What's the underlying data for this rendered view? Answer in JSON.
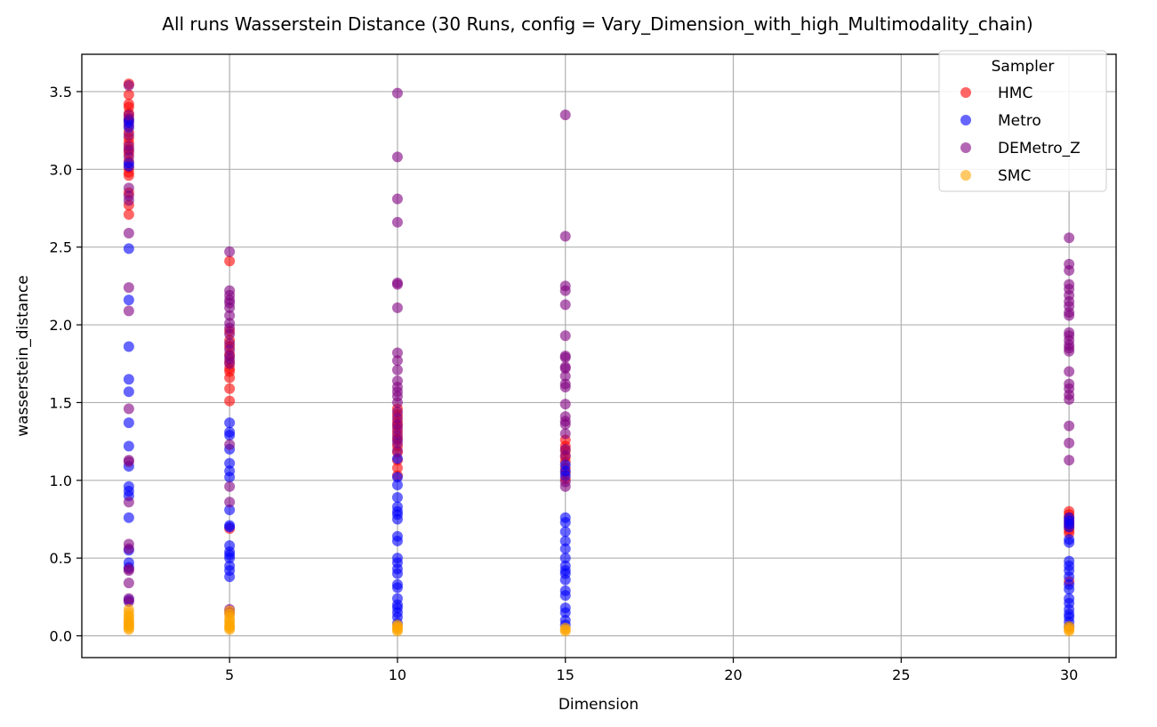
{
  "chart_data": {
    "type": "scatter",
    "title": "All runs Wasserstein Distance (30 Runs, config = Vary_Dimension_with_high_Multimodality_chain)",
    "xlabel": "Dimension",
    "ylabel": "wasserstein_distance",
    "xlim": [
      0.6,
      31.4
    ],
    "ylim": [
      -0.14,
      3.74
    ],
    "xticks": [
      5,
      10,
      15,
      20,
      25,
      30
    ],
    "yticks": [
      0.0,
      0.5,
      1.0,
      1.5,
      2.0,
      2.5,
      3.0,
      3.5
    ],
    "xtick_labels": [
      "5",
      "10",
      "15",
      "20",
      "25",
      "30"
    ],
    "ytick_labels": [
      "0.0",
      "0.5",
      "1.0",
      "1.5",
      "2.0",
      "2.5",
      "3.0",
      "3.5"
    ],
    "grid": true,
    "legend": {
      "title": "Sampler",
      "placement": "top-right"
    },
    "series": [
      {
        "name": "HMC",
        "color": "#ff0000",
        "points": [
          [
            2,
            3.55
          ],
          [
            2,
            3.48
          ],
          [
            2,
            3.42
          ],
          [
            2,
            3.4
          ],
          [
            2,
            3.36
          ],
          [
            2,
            3.33
          ],
          [
            2,
            3.31
          ],
          [
            2,
            3.28
          ],
          [
            2,
            3.24
          ],
          [
            2,
            3.2
          ],
          [
            2,
            3.17
          ],
          [
            2,
            3.13
          ],
          [
            2,
            3.1
          ],
          [
            2,
            3.05
          ],
          [
            2,
            3.01
          ],
          [
            2,
            2.98
          ],
          [
            2,
            2.96
          ],
          [
            2,
            2.85
          ],
          [
            2,
            2.77
          ],
          [
            2,
            2.71
          ],
          [
            5,
            2.41
          ],
          [
            5,
            1.96
          ],
          [
            5,
            1.9
          ],
          [
            5,
            1.86
          ],
          [
            5,
            1.81
          ],
          [
            5,
            1.76
          ],
          [
            5,
            1.72
          ],
          [
            5,
            1.7
          ],
          [
            5,
            1.66
          ],
          [
            5,
            1.59
          ],
          [
            5,
            1.51
          ],
          [
            5,
            0.69
          ],
          [
            10,
            1.46
          ],
          [
            10,
            1.42
          ],
          [
            10,
            1.38
          ],
          [
            10,
            1.35
          ],
          [
            10,
            1.31
          ],
          [
            10,
            1.27
          ],
          [
            10,
            1.22
          ],
          [
            10,
            1.18
          ],
          [
            10,
            1.13
          ],
          [
            10,
            1.08
          ],
          [
            10,
            1.03
          ],
          [
            15,
            1.26
          ],
          [
            15,
            1.22
          ],
          [
            15,
            1.19
          ],
          [
            15,
            1.15
          ],
          [
            15,
            1.12
          ],
          [
            15,
            1.08
          ],
          [
            15,
            1.05
          ],
          [
            15,
            1.01
          ],
          [
            30,
            0.8
          ],
          [
            30,
            0.78
          ],
          [
            30,
            0.76
          ],
          [
            30,
            0.74
          ],
          [
            30,
            0.72
          ],
          [
            30,
            0.7
          ],
          [
            30,
            0.68
          ],
          [
            30,
            0.66
          ],
          [
            30,
            0.35
          ]
        ]
      },
      {
        "name": "Metro",
        "color": "#0000ff",
        "points": [
          [
            2,
            3.32
          ],
          [
            2,
            3.3
          ],
          [
            2,
            3.27
          ],
          [
            2,
            3.04
          ],
          [
            2,
            3.02
          ],
          [
            2,
            2.49
          ],
          [
            2,
            2.16
          ],
          [
            2,
            1.86
          ],
          [
            2,
            1.65
          ],
          [
            2,
            1.57
          ],
          [
            2,
            1.37
          ],
          [
            2,
            1.22
          ],
          [
            2,
            1.09
          ],
          [
            2,
            0.96
          ],
          [
            2,
            0.93
          ],
          [
            2,
            0.9
          ],
          [
            2,
            0.76
          ],
          [
            2,
            0.55
          ],
          [
            2,
            0.47
          ],
          [
            2,
            0.44
          ],
          [
            2,
            0.23
          ],
          [
            5,
            1.37
          ],
          [
            5,
            1.31
          ],
          [
            5,
            1.29
          ],
          [
            5,
            1.2
          ],
          [
            5,
            1.11
          ],
          [
            5,
            1.06
          ],
          [
            5,
            1.02
          ],
          [
            5,
            0.81
          ],
          [
            5,
            0.71
          ],
          [
            5,
            0.7
          ],
          [
            5,
            0.58
          ],
          [
            5,
            0.54
          ],
          [
            5,
            0.52
          ],
          [
            5,
            0.5
          ],
          [
            5,
            0.45
          ],
          [
            5,
            0.42
          ],
          [
            5,
            0.38
          ],
          [
            10,
            1.14
          ],
          [
            10,
            1.02
          ],
          [
            10,
            0.97
          ],
          [
            10,
            0.89
          ],
          [
            10,
            0.83
          ],
          [
            10,
            0.8
          ],
          [
            10,
            0.78
          ],
          [
            10,
            0.75
          ],
          [
            10,
            0.64
          ],
          [
            10,
            0.61
          ],
          [
            10,
            0.5
          ],
          [
            10,
            0.47
          ],
          [
            10,
            0.43
          ],
          [
            10,
            0.4
          ],
          [
            10,
            0.33
          ],
          [
            10,
            0.31
          ],
          [
            10,
            0.24
          ],
          [
            10,
            0.2
          ],
          [
            10,
            0.18
          ],
          [
            10,
            0.15
          ],
          [
            10,
            0.12
          ],
          [
            10,
            0.08
          ],
          [
            15,
            1.1
          ],
          [
            15,
            1.06
          ],
          [
            15,
            1.03
          ],
          [
            15,
            0.76
          ],
          [
            15,
            0.73
          ],
          [
            15,
            0.67
          ],
          [
            15,
            0.61
          ],
          [
            15,
            0.56
          ],
          [
            15,
            0.5
          ],
          [
            15,
            0.45
          ],
          [
            15,
            0.42
          ],
          [
            15,
            0.4
          ],
          [
            15,
            0.36
          ],
          [
            15,
            0.29
          ],
          [
            15,
            0.26
          ],
          [
            15,
            0.18
          ],
          [
            15,
            0.15
          ],
          [
            15,
            0.1
          ],
          [
            15,
            0.07
          ],
          [
            30,
            0.76
          ],
          [
            30,
            0.74
          ],
          [
            30,
            0.72
          ],
          [
            30,
            0.7
          ],
          [
            30,
            0.62
          ],
          [
            30,
            0.6
          ],
          [
            30,
            0.48
          ],
          [
            30,
            0.45
          ],
          [
            30,
            0.42
          ],
          [
            30,
            0.38
          ],
          [
            30,
            0.33
          ],
          [
            30,
            0.3
          ],
          [
            30,
            0.24
          ],
          [
            30,
            0.21
          ],
          [
            30,
            0.17
          ],
          [
            30,
            0.14
          ],
          [
            30,
            0.12
          ],
          [
            30,
            0.09
          ],
          [
            30,
            0.06
          ]
        ]
      },
      {
        "name": "DEMetro_Z",
        "color": "#800080",
        "points": [
          [
            2,
            3.54
          ],
          [
            2,
            3.35
          ],
          [
            2,
            3.22
          ],
          [
            2,
            3.15
          ],
          [
            2,
            3.12
          ],
          [
            2,
            3.08
          ],
          [
            2,
            2.88
          ],
          [
            2,
            2.83
          ],
          [
            2,
            2.8
          ],
          [
            2,
            2.59
          ],
          [
            2,
            2.24
          ],
          [
            2,
            2.09
          ],
          [
            2,
            1.46
          ],
          [
            2,
            1.13
          ],
          [
            2,
            1.12
          ],
          [
            2,
            0.86
          ],
          [
            2,
            0.59
          ],
          [
            2,
            0.56
          ],
          [
            2,
            0.43
          ],
          [
            2,
            0.42
          ],
          [
            2,
            0.34
          ],
          [
            2,
            0.24
          ],
          [
            2,
            0.22
          ],
          [
            5,
            2.47
          ],
          [
            5,
            2.22
          ],
          [
            5,
            2.19
          ],
          [
            5,
            2.16
          ],
          [
            5,
            2.14
          ],
          [
            5,
            2.11
          ],
          [
            5,
            2.06
          ],
          [
            5,
            2.01
          ],
          [
            5,
            1.98
          ],
          [
            5,
            1.94
          ],
          [
            5,
            1.88
          ],
          [
            5,
            1.84
          ],
          [
            5,
            1.8
          ],
          [
            5,
            1.78
          ],
          [
            5,
            1.75
          ],
          [
            5,
            1.23
          ],
          [
            5,
            0.96
          ],
          [
            5,
            0.86
          ],
          [
            5,
            0.17
          ],
          [
            5,
            0.15
          ],
          [
            10,
            3.49
          ],
          [
            10,
            3.08
          ],
          [
            10,
            2.81
          ],
          [
            10,
            2.66
          ],
          [
            10,
            2.27
          ],
          [
            10,
            2.26
          ],
          [
            10,
            2.11
          ],
          [
            10,
            1.82
          ],
          [
            10,
            1.77
          ],
          [
            10,
            1.71
          ],
          [
            10,
            1.64
          ],
          [
            10,
            1.6
          ],
          [
            10,
            1.57
          ],
          [
            10,
            1.54
          ],
          [
            10,
            1.5
          ],
          [
            10,
            1.44
          ],
          [
            10,
            1.4
          ],
          [
            10,
            1.36
          ],
          [
            10,
            1.33
          ],
          [
            10,
            1.29
          ],
          [
            10,
            1.26
          ],
          [
            10,
            1.24
          ],
          [
            10,
            1.19
          ],
          [
            15,
            3.35
          ],
          [
            15,
            2.57
          ],
          [
            15,
            2.25
          ],
          [
            15,
            2.22
          ],
          [
            15,
            2.13
          ],
          [
            15,
            1.93
          ],
          [
            15,
            1.8
          ],
          [
            15,
            1.79
          ],
          [
            15,
            1.73
          ],
          [
            15,
            1.72
          ],
          [
            15,
            1.67
          ],
          [
            15,
            1.62
          ],
          [
            15,
            1.6
          ],
          [
            15,
            1.49
          ],
          [
            15,
            1.41
          ],
          [
            15,
            1.38
          ],
          [
            15,
            1.36
          ],
          [
            15,
            1.3
          ],
          [
            15,
            1.2
          ],
          [
            15,
            1.16
          ],
          [
            15,
            0.99
          ],
          [
            15,
            0.96
          ],
          [
            30,
            2.56
          ],
          [
            30,
            2.39
          ],
          [
            30,
            2.35
          ],
          [
            30,
            2.26
          ],
          [
            30,
            2.23
          ],
          [
            30,
            2.19
          ],
          [
            30,
            2.15
          ],
          [
            30,
            2.12
          ],
          [
            30,
            2.08
          ],
          [
            30,
            2.06
          ],
          [
            30,
            1.95
          ],
          [
            30,
            1.93
          ],
          [
            30,
            1.9
          ],
          [
            30,
            1.87
          ],
          [
            30,
            1.85
          ],
          [
            30,
            1.83
          ],
          [
            30,
            1.7
          ],
          [
            30,
            1.62
          ],
          [
            30,
            1.59
          ],
          [
            30,
            1.55
          ],
          [
            30,
            1.52
          ],
          [
            30,
            1.35
          ],
          [
            30,
            1.24
          ],
          [
            30,
            1.13
          ]
        ]
      },
      {
        "name": "SMC",
        "color": "#ffa500",
        "points": [
          [
            2,
            0.17
          ],
          [
            2,
            0.15
          ],
          [
            2,
            0.13
          ],
          [
            2,
            0.12
          ],
          [
            2,
            0.1
          ],
          [
            2,
            0.09
          ],
          [
            2,
            0.08
          ],
          [
            2,
            0.07
          ],
          [
            2,
            0.06
          ],
          [
            2,
            0.05
          ],
          [
            2,
            0.04
          ],
          [
            5,
            0.16
          ],
          [
            5,
            0.14
          ],
          [
            5,
            0.12
          ],
          [
            5,
            0.1
          ],
          [
            5,
            0.09
          ],
          [
            5,
            0.07
          ],
          [
            5,
            0.06
          ],
          [
            5,
            0.05
          ],
          [
            5,
            0.04
          ],
          [
            10,
            0.07
          ],
          [
            10,
            0.06
          ],
          [
            10,
            0.05
          ],
          [
            10,
            0.04
          ],
          [
            10,
            0.03
          ],
          [
            15,
            0.05
          ],
          [
            15,
            0.04
          ],
          [
            15,
            0.03
          ],
          [
            30,
            0.06
          ],
          [
            30,
            0.05
          ],
          [
            30,
            0.04
          ],
          [
            30,
            0.03
          ]
        ]
      }
    ]
  }
}
